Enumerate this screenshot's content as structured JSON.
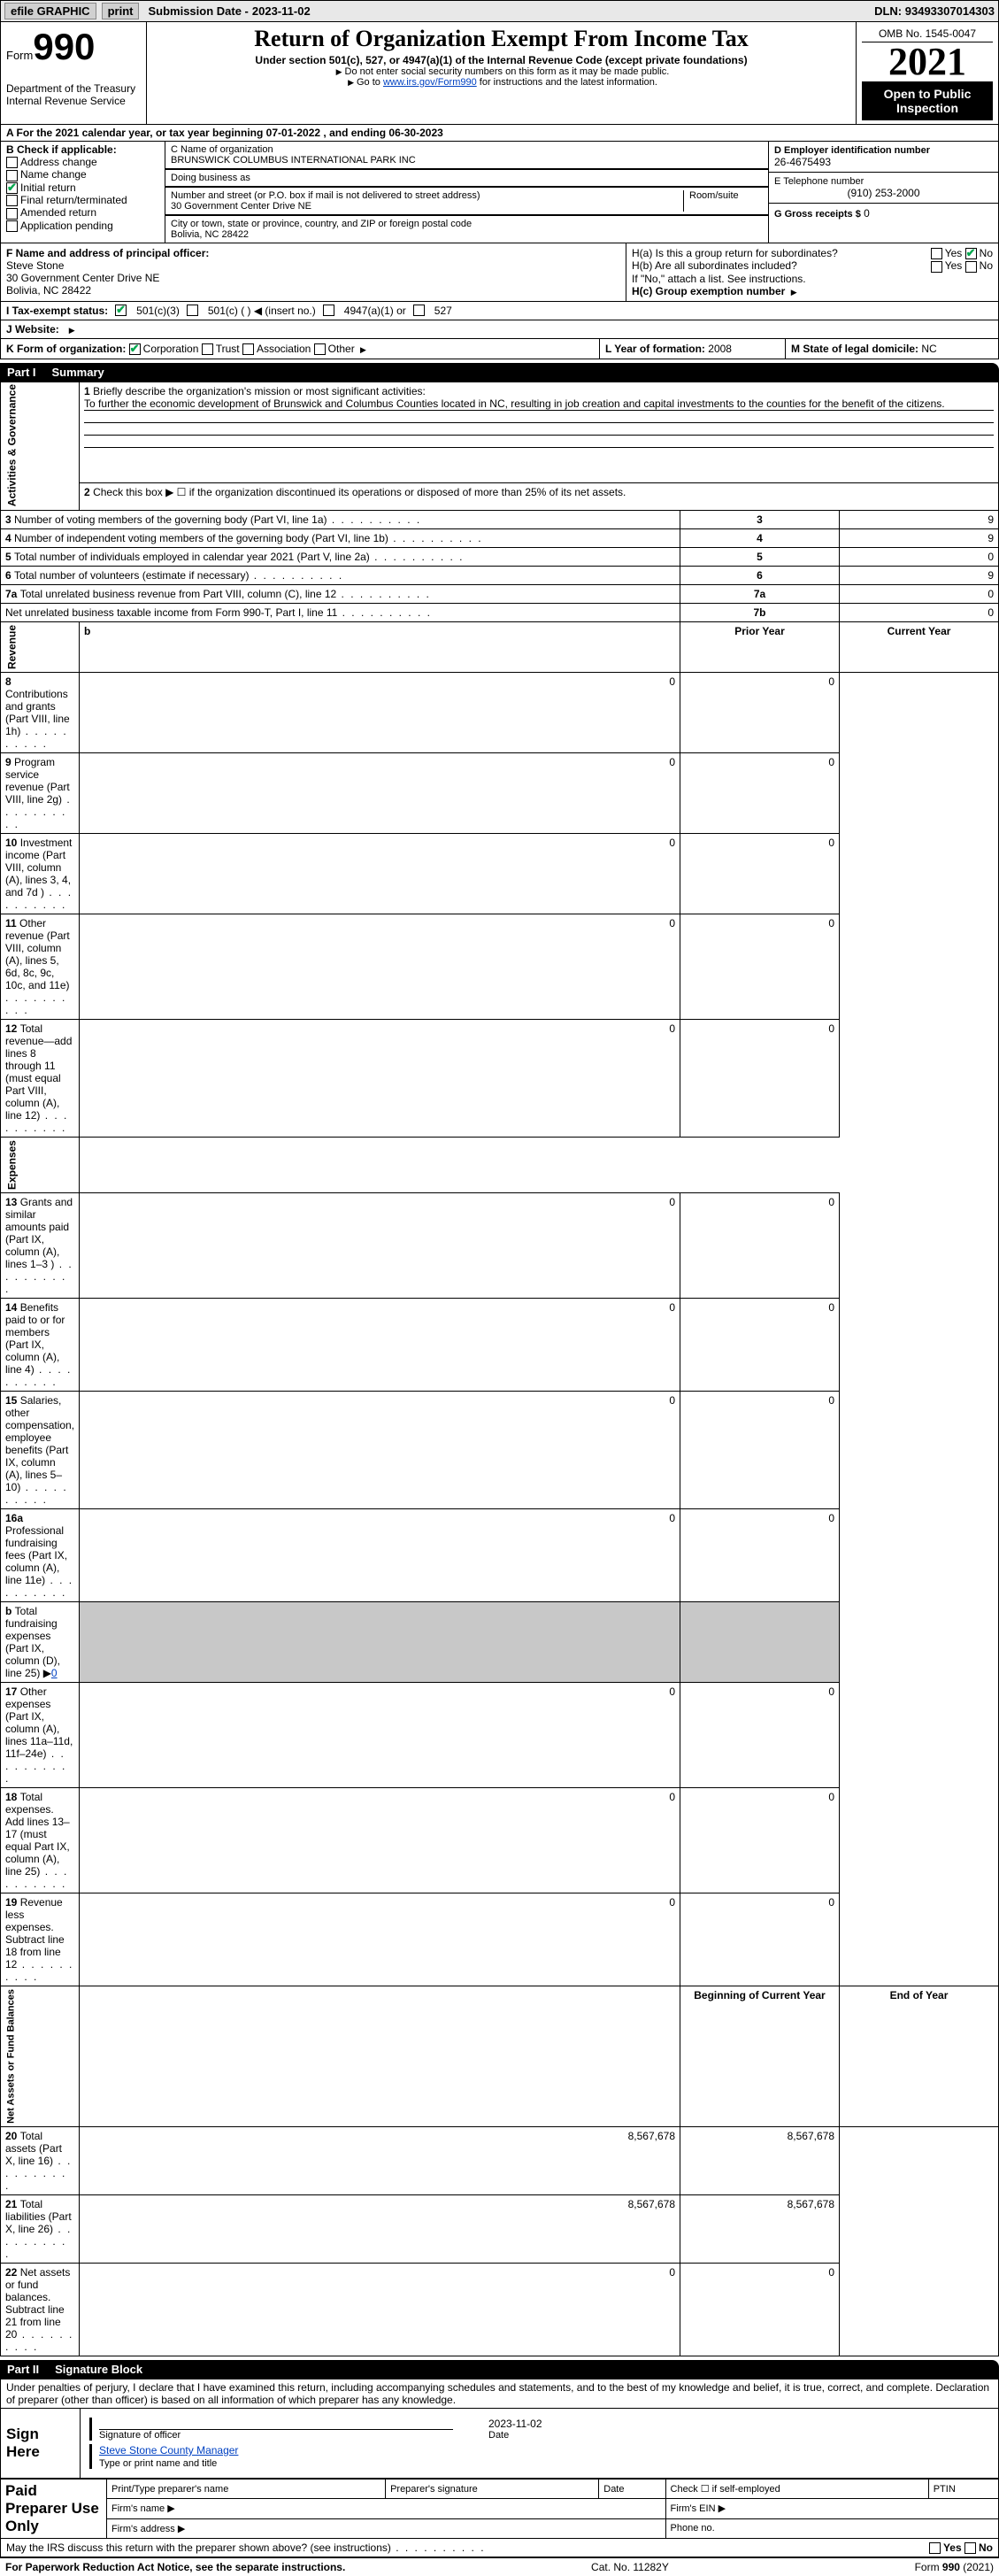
{
  "topbar": {
    "efile": "efile GRAPHIC",
    "print": "print",
    "subdate_label": "Submission Date -",
    "subdate": "2023-11-02",
    "dln_label": "DLN:",
    "dln": "93493307014303"
  },
  "header": {
    "form_word": "Form",
    "form_num": "990",
    "dept": "Department of the Treasury",
    "irs": "Internal Revenue Service",
    "title": "Return of Organization Exempt From Income Tax",
    "subtitle": "Under section 501(c), 527, or 4947(a)(1) of the Internal Revenue Code (except private foundations)",
    "note1": "Do not enter social security numbers on this form as it may be made public.",
    "note2_a": "Go to ",
    "note2_link": "www.irs.gov/Form990",
    "note2_b": " for instructions and the latest information.",
    "omb": "OMB No. 1545-0047",
    "year": "2021",
    "pub": "Open to Public Inspection"
  },
  "rowA": {
    "text_a": "A For the 2021 calendar year, or tax year beginning ",
    "begin": "07-01-2022",
    "text_b": " , and ending ",
    "end": "06-30-2023"
  },
  "colB": {
    "label": "B Check if applicable:",
    "items": [
      {
        "label": "Address change",
        "checked": false
      },
      {
        "label": "Name change",
        "checked": false
      },
      {
        "label": "Initial return",
        "checked": true
      },
      {
        "label": "Final return/terminated",
        "checked": false
      },
      {
        "label": "Amended return",
        "checked": false
      },
      {
        "label": "Application pending",
        "checked": false
      }
    ]
  },
  "colC": {
    "name_label": "C Name of organization",
    "name": "BRUNSWICK COLUMBUS INTERNATIONAL PARK INC",
    "dba_label": "Doing business as",
    "dba": "",
    "street_label": "Number and street (or P.O. box if mail is not delivered to street address)",
    "room_label": "Room/suite",
    "street": "30 Government Center Drive NE",
    "city_label": "City or town, state or province, country, and ZIP or foreign postal code",
    "city": "Bolivia, NC  28422"
  },
  "colD": {
    "ein_label": "D Employer identification number",
    "ein": "26-4675493",
    "tel_label": "E Telephone number",
    "tel": "(910) 253-2000",
    "gross_label": "G Gross receipts $",
    "gross": "0"
  },
  "rowF": {
    "label": "F Name and address of principal officer:",
    "name": "Steve Stone",
    "addr1": "30 Government Center Drive NE",
    "addr2": "Bolivia, NC  28422"
  },
  "rowH": {
    "ha": "H(a)  Is this a group return for subordinates?",
    "hb": "H(b)  Are all subordinates included?",
    "hb_note": "If \"No,\" attach a list. See instructions.",
    "hc": "H(c)  Group exemption number",
    "yes": "Yes",
    "no": "No"
  },
  "rowI": {
    "label": "I    Tax-exempt status:",
    "opts": [
      "501(c)(3)",
      "501(c) (  ) ◀ (insert no.)",
      "4947(a)(1) or",
      "527"
    ]
  },
  "rowJ": {
    "label": "J   Website:"
  },
  "rowK": {
    "label": "K Form of organization:",
    "opts": [
      "Corporation",
      "Trust",
      "Association",
      "Other"
    ],
    "L_label": "L Year of formation:",
    "L_val": "2008",
    "M_label": "M State of legal domicile:",
    "M_val": "NC"
  },
  "part1": {
    "part": "Part I",
    "name": "Summary",
    "q1_label": "Briefly describe the organization's mission or most significant activities:",
    "q1_text": "To further the economic development of Brunswick and Columbus Counties located in NC, resulting in job creation and capital investments to the counties for the benefit of the citizens.",
    "q2": "Check this box ▶ ☐  if the organization discontinued its operations or disposed of more than 25% of its net assets.",
    "lines_top": [
      {
        "n": "3",
        "t": "Number of voting members of the governing body (Part VI, line 1a)",
        "box": "3",
        "v": "9"
      },
      {
        "n": "4",
        "t": "Number of independent voting members of the governing body (Part VI, line 1b)",
        "box": "4",
        "v": "9"
      },
      {
        "n": "5",
        "t": "Total number of individuals employed in calendar year 2021 (Part V, line 2a)",
        "box": "5",
        "v": "0"
      },
      {
        "n": "6",
        "t": "Total number of volunteers (estimate if necessary)",
        "box": "6",
        "v": "9"
      },
      {
        "n": "7a",
        "t": "Total unrelated business revenue from Part VIII, column (C), line 12",
        "box": "7a",
        "v": "0"
      },
      {
        "n": "",
        "t": "Net unrelated business taxable income from Form 990-T, Part I, line 11",
        "box": "7b",
        "v": "0"
      }
    ],
    "prior": "Prior Year",
    "current": "Current Year",
    "revenue": [
      {
        "n": "8",
        "t": "Contributions and grants (Part VIII, line 1h)",
        "p": "0",
        "c": "0"
      },
      {
        "n": "9",
        "t": "Program service revenue (Part VIII, line 2g)",
        "p": "0",
        "c": "0"
      },
      {
        "n": "10",
        "t": "Investment income (Part VIII, column (A), lines 3, 4, and 7d )",
        "p": "0",
        "c": "0"
      },
      {
        "n": "11",
        "t": "Other revenue (Part VIII, column (A), lines 5, 6d, 8c, 9c, 10c, and 11e)",
        "p": "0",
        "c": "0"
      },
      {
        "n": "12",
        "t": "Total revenue—add lines 8 through 11 (must equal Part VIII, column (A), line 12)",
        "p": "0",
        "c": "0"
      }
    ],
    "expenses": [
      {
        "n": "13",
        "t": "Grants and similar amounts paid (Part IX, column (A), lines 1–3 )",
        "p": "0",
        "c": "0"
      },
      {
        "n": "14",
        "t": "Benefits paid to or for members (Part IX, column (A), line 4)",
        "p": "0",
        "c": "0"
      },
      {
        "n": "15",
        "t": "Salaries, other compensation, employee benefits (Part IX, column (A), lines 5–10)",
        "p": "0",
        "c": "0"
      },
      {
        "n": "16a",
        "t": "Professional fundraising fees (Part IX, column (A), line 11e)",
        "p": "0",
        "c": "0"
      },
      {
        "n": "b",
        "t": "Total fundraising expenses (Part IX, column (D), line 25) ▶",
        "p": "shade",
        "c": "shade",
        "link": "0"
      },
      {
        "n": "17",
        "t": "Other expenses (Part IX, column (A), lines 11a–11d, 11f–24e)",
        "p": "0",
        "c": "0"
      },
      {
        "n": "18",
        "t": "Total expenses. Add lines 13–17 (must equal Part IX, column (A), line 25)",
        "p": "0",
        "c": "0"
      },
      {
        "n": "19",
        "t": "Revenue less expenses. Subtract line 18 from line 12",
        "p": "0",
        "c": "0"
      }
    ],
    "begin_yr": "Beginning of Current Year",
    "end_yr": "End of Year",
    "netassets": [
      {
        "n": "20",
        "t": "Total assets (Part X, line 16)",
        "p": "8,567,678",
        "c": "8,567,678"
      },
      {
        "n": "21",
        "t": "Total liabilities (Part X, line 26)",
        "p": "8,567,678",
        "c": "8,567,678"
      },
      {
        "n": "22",
        "t": "Net assets or fund balances. Subtract line 21 from line 20",
        "p": "0",
        "c": "0"
      }
    ],
    "vlabels": {
      "act": "Activities & Governance",
      "rev": "Revenue",
      "exp": "Expenses",
      "net": "Net Assets or Fund Balances"
    }
  },
  "part2": {
    "part": "Part II",
    "name": "Signature Block",
    "decl": "Under penalties of perjury, I declare that I have examined this return, including accompanying schedules and statements, and to the best of my knowledge and belief, it is true, correct, and complete. Declaration of preparer (other than officer) is based on all information of which preparer has any knowledge.",
    "sign_here": "Sign Here",
    "sig_officer": "Signature of officer",
    "sig_date": "2023-11-02",
    "date": "Date",
    "officer_name": "Steve Stone County Manager",
    "type_name": "Type or print name and title",
    "paid": "Paid Preparer Use Only",
    "prep_name": "Print/Type preparer's name",
    "prep_sig": "Preparer's signature",
    "check_if": "Check ☐ if self-employed",
    "ptin": "PTIN",
    "firm_name": "Firm's name ▶",
    "firm_ein": "Firm's EIN ▶",
    "firm_addr": "Firm's address ▶",
    "phone": "Phone no.",
    "may_irs": "May the IRS discuss this return with the preparer shown above? (see instructions)"
  },
  "footer": {
    "pra": "For Paperwork Reduction Act Notice, see the separate instructions.",
    "cat": "Cat. No. 11282Y",
    "form": "Form 990 (2021)"
  }
}
